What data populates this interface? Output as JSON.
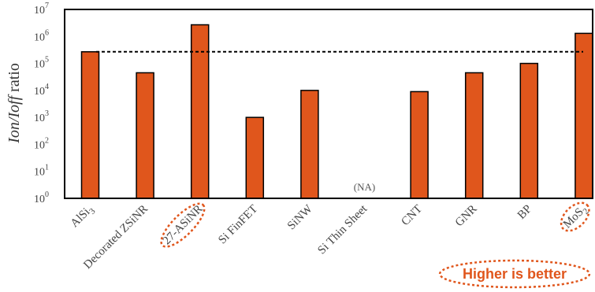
{
  "chart_data": {
    "type": "bar",
    "scale": "log",
    "ylabel_italic": "Ion/Ioff",
    "ylabel_plain": " ratio",
    "ylim": [
      1,
      10000000
    ],
    "ytick_base": "10",
    "ytick_exponents": [
      "0",
      "1",
      "2",
      "3",
      "4",
      "5",
      "6",
      "7"
    ],
    "grid": false,
    "categories": [
      {
        "base": "AlSi",
        "sub": "3"
      },
      {
        "base": "Decorated ZSiNR",
        "sub": ""
      },
      {
        "base": "27-ASiNR",
        "sub": ""
      },
      {
        "base": "Si FinFET",
        "sub": ""
      },
      {
        "base": "SiNW",
        "sub": ""
      },
      {
        "base": "Si Thin Sheet",
        "sub": ""
      },
      {
        "base": "CNT",
        "sub": ""
      },
      {
        "base": "GNR",
        "sub": ""
      },
      {
        "base": "BP",
        "sub": ""
      },
      {
        "base": "MoS",
        "sub": "2"
      }
    ],
    "values": [
      270000,
      45000,
      2700000,
      1000,
      10000,
      null,
      9000,
      45000,
      100000,
      1300000
    ],
    "missing_label": "(NA)",
    "reference_line": 270000,
    "highlighted_categories": [
      2,
      9
    ],
    "callout": "Higher is better",
    "colors": {
      "bar": "#e0561c",
      "bar_edge": "#000000",
      "highlight": "#e0561c",
      "callout_text": "#e0561c",
      "axis": "#000000",
      "reference_line": "#000000"
    }
  }
}
